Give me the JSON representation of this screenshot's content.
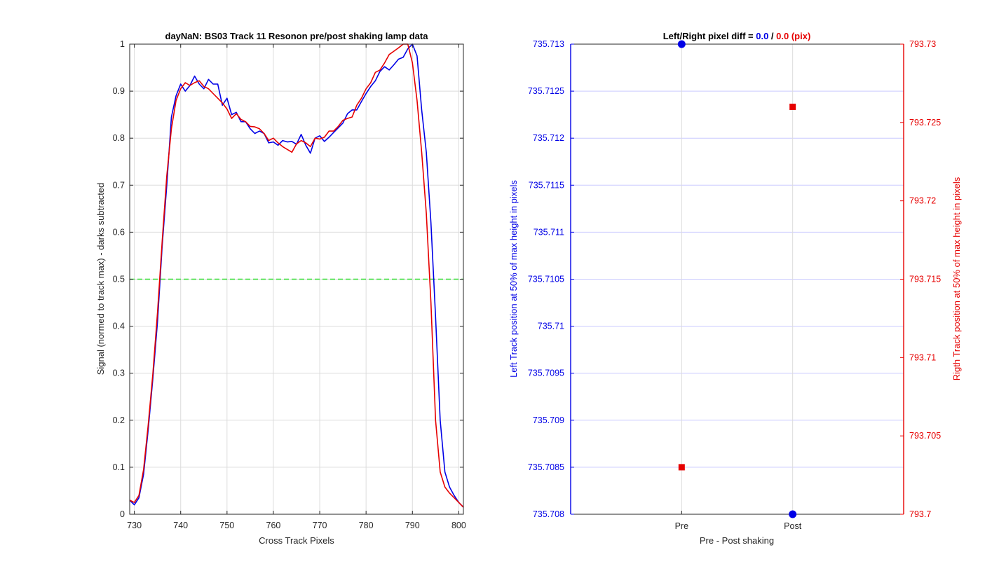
{
  "chart_data": [
    {
      "type": "line",
      "title": "dayNaN: BS03  Track 11 Resonon pre/post shaking lamp data",
      "xlabel": "Cross Track Pixels",
      "ylabel": "Signal (normed to track max) - darks subtracted",
      "xlim": [
        729,
        801
      ],
      "ylim": [
        0,
        1
      ],
      "x_ticks": [
        "730",
        "740",
        "750",
        "760",
        "770",
        "780",
        "790",
        "800"
      ],
      "y_ticks": [
        "0",
        "0.1",
        "0.2",
        "0.3",
        "0.4",
        "0.5",
        "0.6",
        "0.7",
        "0.8",
        "0.9",
        "1"
      ],
      "grid": true,
      "colors": {
        "pre": "#0000e6",
        "post": "#e60000",
        "threshold": "#33dd33"
      },
      "threshold": 0.5,
      "series": [
        {
          "key": "pre",
          "x": [
            729,
            730,
            731,
            732,
            733,
            734,
            735,
            736,
            737,
            738,
            739,
            740,
            741,
            742,
            743,
            744,
            745,
            746,
            747,
            748,
            749,
            750,
            751,
            752,
            753,
            754,
            755,
            756,
            757,
            758,
            759,
            760,
            761,
            762,
            763,
            764,
            765,
            766,
            767,
            768,
            769,
            770,
            771,
            772,
            773,
            774,
            775,
            776,
            777,
            778,
            779,
            780,
            781,
            782,
            783,
            784,
            785,
            786,
            787,
            788,
            789,
            790,
            791,
            792,
            793,
            794,
            795,
            796,
            797,
            798,
            799,
            800,
            801
          ],
          "y": [
            0.03,
            0.02,
            0.035,
            0.085,
            0.18,
            0.29,
            0.41,
            0.57,
            0.7,
            0.845,
            0.89,
            0.915,
            0.9,
            0.912,
            0.932,
            0.915,
            0.905,
            0.925,
            0.915,
            0.915,
            0.87,
            0.885,
            0.85,
            0.855,
            0.835,
            0.835,
            0.82,
            0.81,
            0.815,
            0.81,
            0.79,
            0.792,
            0.785,
            0.795,
            0.792,
            0.793,
            0.787,
            0.808,
            0.785,
            0.768,
            0.8,
            0.805,
            0.793,
            0.802,
            0.812,
            0.822,
            0.832,
            0.852,
            0.86,
            0.86,
            0.878,
            0.895,
            0.91,
            0.922,
            0.942,
            0.952,
            0.945,
            0.956,
            0.968,
            0.972,
            0.99,
            1.0,
            0.975,
            0.86,
            0.77,
            0.62,
            0.42,
            0.2,
            0.09,
            0.058,
            0.04,
            0.025,
            0.015
          ]
        },
        {
          "key": "post",
          "x": [
            729,
            730,
            731,
            732,
            733,
            734,
            735,
            736,
            737,
            738,
            739,
            740,
            741,
            742,
            743,
            744,
            745,
            746,
            747,
            748,
            749,
            750,
            751,
            752,
            753,
            754,
            755,
            756,
            757,
            758,
            759,
            760,
            761,
            762,
            763,
            764,
            765,
            766,
            767,
            768,
            769,
            770,
            771,
            772,
            773,
            774,
            775,
            776,
            777,
            778,
            779,
            780,
            781,
            782,
            783,
            784,
            785,
            786,
            787,
            788,
            789,
            790,
            791,
            792,
            793,
            794,
            795,
            796,
            797,
            798,
            799,
            800,
            801
          ],
          "y": [
            0.03,
            0.025,
            0.04,
            0.095,
            0.19,
            0.3,
            0.43,
            0.58,
            0.72,
            0.82,
            0.88,
            0.905,
            0.918,
            0.912,
            0.918,
            0.922,
            0.91,
            0.905,
            0.895,
            0.885,
            0.875,
            0.862,
            0.842,
            0.852,
            0.84,
            0.835,
            0.825,
            0.824,
            0.82,
            0.81,
            0.795,
            0.8,
            0.79,
            0.782,
            0.776,
            0.77,
            0.788,
            0.795,
            0.79,
            0.782,
            0.8,
            0.798,
            0.802,
            0.815,
            0.815,
            0.825,
            0.838,
            0.842,
            0.845,
            0.87,
            0.885,
            0.905,
            0.918,
            0.94,
            0.945,
            0.96,
            0.978,
            0.985,
            0.992,
            1.0,
            1.0,
            0.96,
            0.88,
            0.77,
            0.64,
            0.45,
            0.2,
            0.09,
            0.058,
            0.045,
            0.035,
            0.025,
            0.015
          ]
        }
      ]
    },
    {
      "type": "scatter",
      "title_parts": [
        {
          "text": "Left/Right pixel diff = ",
          "color": "#000000"
        },
        {
          "text": "0.0",
          "color": "#0000e6"
        },
        {
          "text": " / ",
          "color": "#000000"
        },
        {
          "text": "0.0 (pix)",
          "color": "#e60000"
        }
      ],
      "xlabel": "Pre - Post shaking",
      "categories": [
        "Pre",
        "Post"
      ],
      "grid": true,
      "left_axis": {
        "label": "Left Track position at 50% of max height in pixels",
        "color": "#0000e6",
        "ylim": [
          735.708,
          735.713
        ],
        "ticks": [
          "735.713",
          "735.7125",
          "735.712",
          "735.7115",
          "735.711",
          "735.7105",
          "735.71",
          "735.7095",
          "735.709",
          "735.7085",
          "735.708"
        ],
        "values": [
          735.713,
          735.708
        ],
        "marker": "circle"
      },
      "right_axis": {
        "label": "Rigth Track position at 50% of max height in pixels",
        "color": "#e60000",
        "ylim": [
          793.7,
          793.73
        ],
        "ticks": [
          "793.73",
          "793.725",
          "793.72",
          "793.715",
          "793.71",
          "793.705",
          "793.7"
        ],
        "values": [
          793.703,
          793.726
        ],
        "marker": "square"
      }
    }
  ]
}
